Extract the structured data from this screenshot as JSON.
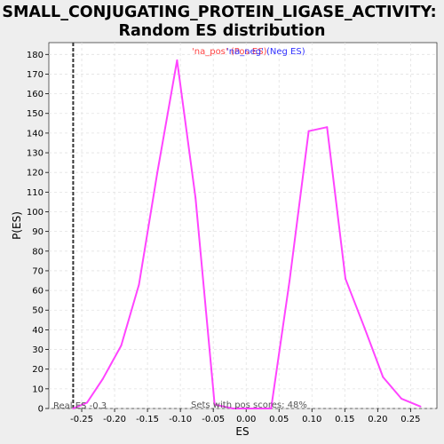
{
  "chart_data": {
    "type": "line",
    "title_line1": "SMALL_CONJUGATING_PROTEIN_LIGASE_ACTIVITY:",
    "title_line2": "Random ES distribution",
    "xlabel": "ES",
    "ylabel": "P(ES)",
    "xlim": [
      -0.3,
      0.29
    ],
    "ylim": [
      0,
      186
    ],
    "x_ticks": [
      -0.25,
      -0.2,
      -0.15,
      -0.1,
      -0.05,
      0.0,
      0.05,
      0.1,
      0.15,
      0.2,
      0.25
    ],
    "x_tick_labels": [
      "-0.25",
      "-0.20",
      "-0.15",
      "-0.10",
      "-0.05",
      "0.00",
      "0.05",
      "0.10",
      "0.15",
      "0.20",
      "0.25"
    ],
    "y_ticks": [
      0,
      10,
      20,
      30,
      40,
      50,
      60,
      70,
      80,
      90,
      100,
      110,
      120,
      130,
      140,
      150,
      160,
      170,
      180
    ],
    "grid": true,
    "legend_placement": "top-center",
    "legend": [
      {
        "label": "'na_pos' (Pos ES)",
        "color": "#ff4444"
      },
      {
        "label": "'na_neg' (Neg ES)",
        "color": "#3333ff"
      }
    ],
    "series": [
      {
        "color": "#ff44ff",
        "x": [
          -0.263,
          -0.242,
          -0.218,
          -0.19,
          -0.163,
          -0.135,
          -0.105,
          -0.077,
          -0.048,
          -0.02,
          0.01,
          0.038,
          0.066,
          0.095,
          0.123,
          0.151,
          0.18,
          0.208,
          0.236,
          0.265
        ],
        "y": [
          0,
          3,
          15,
          32,
          63,
          120,
          177,
          107,
          2,
          0,
          0,
          0,
          65,
          141,
          143,
          66,
          41,
          16,
          5,
          1
        ]
      }
    ],
    "real_es": -0.263,
    "real_es_label": "Real ES -0.3",
    "sets_label": "Sets with pos scores: 48%"
  }
}
